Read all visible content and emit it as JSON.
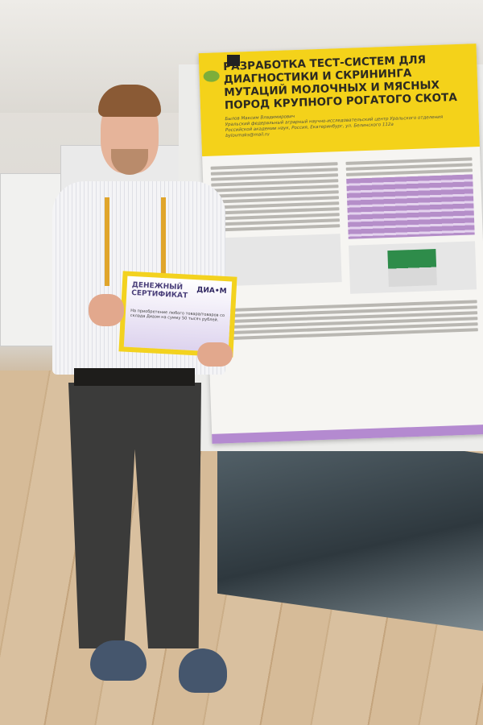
{
  "poster": {
    "title": "РАЗРАБОТКА ТЕСТ-СИСТЕМ ДЛЯ ДИАГНОСТИКИ И СКРИНИНГА МУТАЦИЙ МОЛОЧНЫХ И МЯСНЫХ ПОРОД КРУПНОГО РОГАТОГО СКОТА",
    "author": "Былов Максим Владимирович",
    "organization": "Уральский федеральный аграрный научно-исследовательский центр Уральского отделения Российской академии наук, Россия, Екатеринбург, ул. Белинского 112а",
    "email": "bylovmaks@mail.ru",
    "accent_color": "#f4d21a",
    "secondary_color": "#b48ad0"
  },
  "certificate": {
    "title": "ДЕНЕЖНЫЙ СЕРТИФИКАТ",
    "brand": "ДИА•М",
    "text": "На приобретение любого товара/товаров со склада Диаэм на сумму 50 тысяч рублей."
  }
}
